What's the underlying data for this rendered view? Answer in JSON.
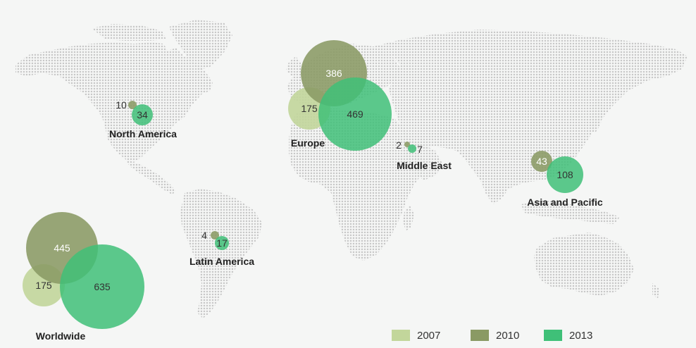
{
  "colors": {
    "2007": "#c2d69b",
    "2010": "#8a9a64",
    "2013": "#3fc078",
    "dots": "#c8c8c8"
  },
  "legend": [
    {
      "label": "2007",
      "color": "#c2d69b"
    },
    {
      "label": "2010",
      "color": "#8a9a64"
    },
    {
      "label": "2013",
      "color": "#3fc078"
    }
  ],
  "regions": [
    {
      "name": "North America",
      "values": {
        "2010": "10",
        "2013": "34"
      }
    },
    {
      "name": "Europe",
      "values": {
        "2007": "175",
        "2010": "386",
        "2013": "469"
      }
    },
    {
      "name": "Middle East",
      "values": {
        "2010": "2",
        "2013": "7"
      }
    },
    {
      "name": "Asia and Pacific",
      "values": {
        "2010": "43",
        "2013": "108"
      }
    },
    {
      "name": "Latin America",
      "values": {
        "2010": "4",
        "2013": "17"
      }
    },
    {
      "name": "Worldwide",
      "values": {
        "2007": "175",
        "2010": "445",
        "2013": "635"
      }
    }
  ]
}
